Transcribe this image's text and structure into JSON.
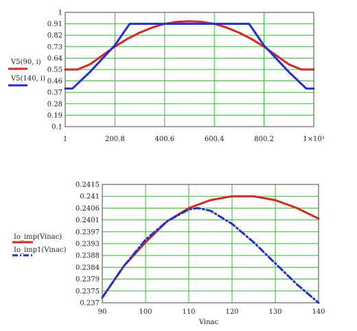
{
  "chart_data": [
    {
      "type": "line",
      "xlim": [
        1,
        1000
      ],
      "ylim": [
        0.1,
        1
      ],
      "xticks": [
        "1",
        "200.8",
        "400.6",
        "600.4",
        "800.2",
        "1×10³"
      ],
      "yticks": [
        "0.1",
        "0.19",
        "0.28",
        "0.37",
        "0.46",
        "0.55",
        "0.64",
        "0.73",
        "0.82",
        "0.91",
        "1"
      ],
      "grid": true,
      "legend_position": "left",
      "series": [
        {
          "name": "V5(90, i)",
          "color": "#e0221e",
          "x": [
            1,
            50,
            100,
            150,
            200,
            250,
            300,
            350,
            400,
            450,
            500,
            550,
            600,
            650,
            700,
            750,
            800,
            850,
            900,
            950,
            1000
          ],
          "y": [
            0.55,
            0.55,
            0.59,
            0.66,
            0.73,
            0.79,
            0.84,
            0.88,
            0.91,
            0.925,
            0.93,
            0.925,
            0.91,
            0.88,
            0.84,
            0.79,
            0.73,
            0.66,
            0.59,
            0.55,
            0.55
          ]
        },
        {
          "name": "V5(140, i)",
          "color": "#1d2fd8",
          "x": [
            1,
            30,
            100,
            200,
            260,
            500,
            740,
            800,
            900,
            970,
            1000
          ],
          "y": [
            0.4,
            0.4,
            0.53,
            0.74,
            0.91,
            0.91,
            0.91,
            0.74,
            0.53,
            0.4,
            0.4
          ]
        }
      ]
    },
    {
      "type": "line",
      "xlim": [
        90,
        140
      ],
      "ylim": [
        0.237,
        0.2415
      ],
      "xlabel": "Vinac",
      "xticks": [
        "90",
        "100",
        "110",
        "120",
        "130",
        "140"
      ],
      "yticks": [
        "0.237",
        "0.2375",
        "0.2379",
        "0.2384",
        "0.2388",
        "0.2393",
        "0.2397",
        "0.2401",
        "0.2406",
        "0.241",
        "0.2415"
      ],
      "grid": true,
      "legend_position": "left",
      "series": [
        {
          "name": "Io_imp(Vinac)",
          "color": "#e0221e",
          "style": "solid",
          "x": [
            90,
            95,
            100,
            105,
            110,
            115,
            120,
            125,
            130,
            135,
            140
          ],
          "y": [
            0.2372,
            0.2384,
            0.2393,
            0.2401,
            0.2406,
            0.2409,
            0.24105,
            0.24105,
            0.2409,
            0.2406,
            0.2402
          ]
        },
        {
          "name": "Io_imp1(Vinac)",
          "color": "#1d2fd8",
          "style": "dash-dot",
          "x": [
            90,
            95,
            100,
            105,
            110,
            112,
            115,
            120,
            125,
            130,
            135,
            140
          ],
          "y": [
            0.2372,
            0.2384,
            0.2394,
            0.2401,
            0.24055,
            0.2406,
            0.2405,
            0.24,
            0.2393,
            0.2385,
            0.2377,
            0.237
          ]
        }
      ]
    }
  ]
}
